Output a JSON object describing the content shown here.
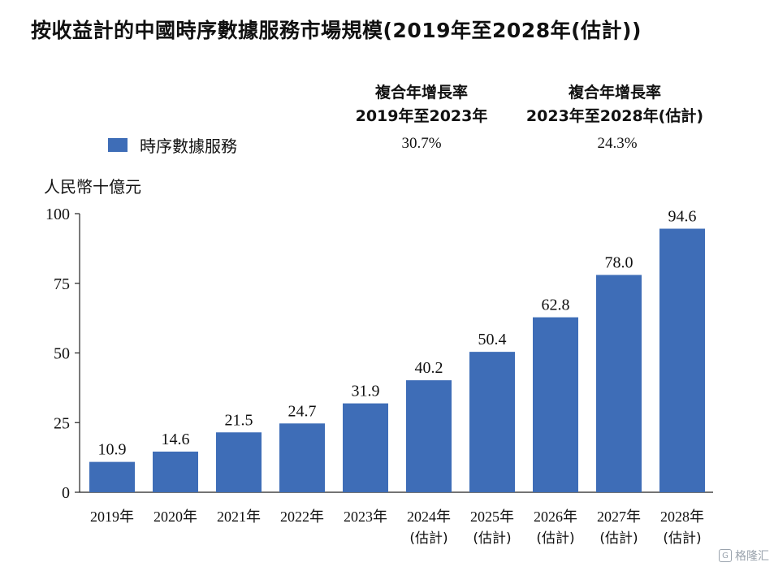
{
  "title": "按收益計的中國時序數據服務市場規模(2019年至2028年(估計))",
  "cagr": [
    {
      "line1": "複合年增長率",
      "line2": "2019年至2023年",
      "value": "30.7%"
    },
    {
      "line1": "複合年增長率",
      "line2": "2023年至2028年(估計)",
      "value": "24.3%"
    }
  ],
  "legend": {
    "label": "時序數據服務",
    "color": "#3e6db7"
  },
  "watermark": "格隆汇",
  "chart_data": {
    "type": "bar",
    "title": "按收益計的中國時序數據服務市場規模(2019年至2028年(估計))",
    "ylabel": "人民幣十億元",
    "ylim": [
      0,
      100
    ],
    "yticks": [
      0,
      25,
      50,
      75,
      100
    ],
    "categories": [
      {
        "line1": "2019年",
        "line2": ""
      },
      {
        "line1": "2020年",
        "line2": ""
      },
      {
        "line1": "2021年",
        "line2": ""
      },
      {
        "line1": "2022年",
        "line2": ""
      },
      {
        "line1": "2023年",
        "line2": ""
      },
      {
        "line1": "2024年",
        "line2": "(估計)"
      },
      {
        "line1": "2025年",
        "line2": "(估計)"
      },
      {
        "line1": "2026年",
        "line2": "(估計)"
      },
      {
        "line1": "2027年",
        "line2": "(估計)"
      },
      {
        "line1": "2028年",
        "line2": "(估計)"
      }
    ],
    "series": [
      {
        "name": "時序數據服務",
        "values": [
          10.9,
          14.6,
          21.5,
          24.7,
          31.9,
          40.2,
          50.4,
          62.8,
          78.0,
          94.6
        ],
        "labels": [
          "10.9",
          "14.6",
          "21.5",
          "24.7",
          "31.9",
          "40.2",
          "50.4",
          "62.8",
          "78.0",
          "94.6"
        ]
      }
    ],
    "bar_color": "#3e6db7",
    "grid": false
  }
}
